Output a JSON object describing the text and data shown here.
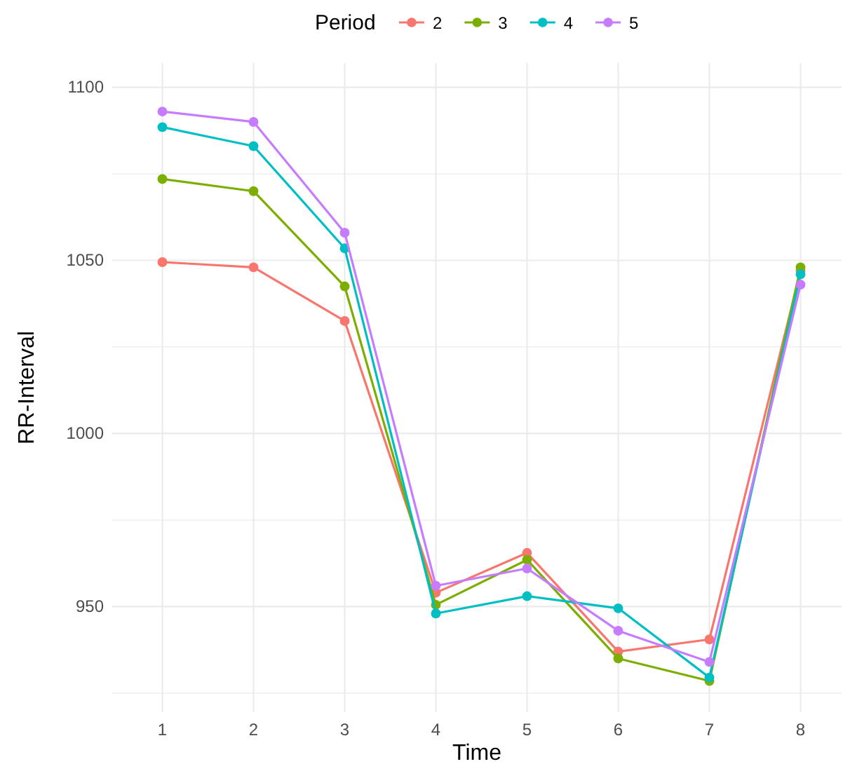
{
  "chart_data": {
    "type": "line",
    "xlabel": "Time",
    "ylabel": "RR-Interval",
    "legend_title": "Period",
    "legend": "top",
    "grid": true,
    "marker": "circle",
    "line_style": "solid",
    "x": [
      1,
      2,
      3,
      4,
      5,
      6,
      7,
      8
    ],
    "xlim": [
      0.45,
      8.45
    ],
    "xticks": [
      1,
      2,
      3,
      4,
      5,
      6,
      7,
      8
    ],
    "ylim": [
      919.5,
      1107
    ],
    "yticks": [
      {
        "value": 925,
        "label": null
      },
      950,
      {
        "value": 975,
        "label": null
      },
      1000,
      {
        "value": 1025,
        "label": null
      },
      1050,
      {
        "value": 1075,
        "label": null
      },
      1100
    ],
    "series": [
      {
        "name": "2",
        "color": "#f8766d",
        "values": [
          1049.5,
          1048,
          1032.5,
          954,
          965.5,
          937,
          940.5,
          1047
        ]
      },
      {
        "name": "3",
        "color": "#7cae00",
        "values": [
          1073.5,
          1070,
          1042.5,
          950.5,
          963.5,
          935,
          928.5,
          1048
        ]
      },
      {
        "name": "4",
        "color": "#00bfc4",
        "values": [
          1088.5,
          1083,
          1053.5,
          948,
          953,
          949.5,
          929.5,
          1046
        ]
      },
      {
        "name": "5",
        "color": "#c77cff",
        "values": [
          1093,
          1090,
          1058,
          956,
          961,
          943,
          934,
          1043
        ]
      }
    ]
  }
}
